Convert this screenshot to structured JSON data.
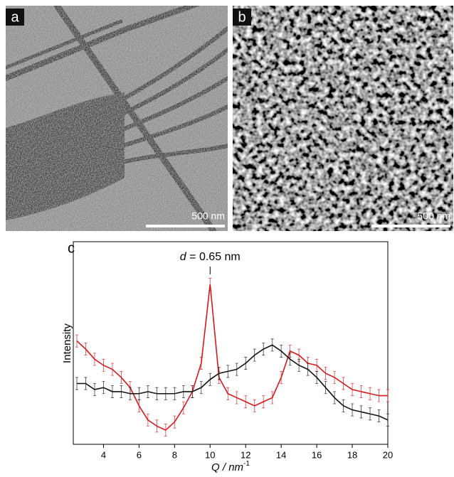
{
  "panels": [
    {
      "label": "a",
      "scale_bar": "500 nm"
    },
    {
      "label": "b",
      "scale_bar": "500 nm"
    }
  ],
  "chart_data": {
    "type": "line",
    "panel_label": "c",
    "annotation": {
      "symbol": "d",
      "text": "= 0.65 nm",
      "x": 10
    },
    "xlabel": "Q / nm",
    "xlabel_exponent": "-1",
    "ylabel": "Intensity",
    "xlim": [
      2.3,
      20
    ],
    "ylim": [
      0,
      100
    ],
    "xticks": [
      4,
      6,
      8,
      10,
      12,
      14,
      16,
      18,
      20
    ],
    "x": [
      2.5,
      3,
      3.5,
      4,
      4.5,
      5,
      5.5,
      6,
      6.5,
      7,
      7.5,
      8,
      8.5,
      9,
      9.5,
      10,
      10.5,
      11,
      11.5,
      12,
      12.5,
      13,
      13.5,
      14,
      14.5,
      15,
      15.5,
      16,
      16.5,
      17,
      17.5,
      18,
      18.5,
      19,
      19.5,
      20
    ],
    "series": [
      {
        "color": "#d7191c",
        "error": 3,
        "values": [
          51,
          47,
          42,
          39,
          37,
          33,
          28,
          19,
          12,
          9,
          7,
          11,
          18,
          26,
          40,
          79,
          33,
          25,
          23,
          21,
          19,
          21,
          23,
          33,
          46,
          44,
          40,
          39,
          35,
          33,
          30,
          27,
          26,
          25,
          24,
          24
        ]
      },
      {
        "color": "#111111",
        "error": 3,
        "values": [
          30,
          30,
          27,
          28,
          26,
          26,
          25,
          25,
          26,
          25,
          25,
          25,
          26,
          26,
          28,
          32,
          35,
          36,
          37,
          40,
          44,
          47,
          49,
          46,
          42,
          39,
          37,
          33,
          28,
          23,
          19,
          17,
          16,
          15,
          14,
          12
        ]
      }
    ]
  }
}
